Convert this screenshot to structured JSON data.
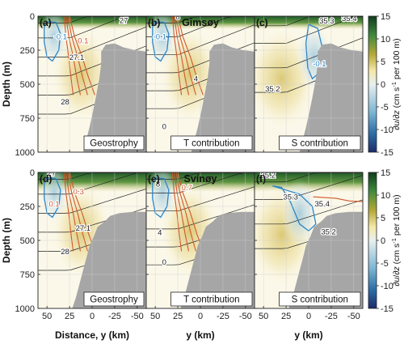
{
  "chart_data": {
    "type": "heatmap",
    "shared": {
      "ylabel": "Depth (m)",
      "xlabel_left": "Distance, y (km)",
      "xlabel": "y (km)",
      "xlim": [
        60,
        -60
      ],
      "xticks": [
        "50",
        "25",
        "0",
        "-25",
        "-50"
      ],
      "xtick_values": [
        50,
        25,
        0,
        -25,
        -50
      ],
      "ylim": [
        0,
        1000
      ],
      "yticks": [
        "0",
        "250",
        "500",
        "750",
        "1000"
      ],
      "ytick_values": [
        0,
        250,
        500,
        750,
        1000
      ],
      "colorbar": {
        "label": "∂u/∂z (cm s⁻¹ per 100 m)",
        "label_parts": [
          "∂",
          "u",
          "/∂",
          "z",
          " (cm s",
          "-1",
          " per 100 m)"
        ],
        "range": [
          -15,
          15
        ],
        "ticks": [
          "15",
          "10",
          "5",
          "0",
          "-5",
          "-10",
          "-15"
        ],
        "tick_values": [
          15,
          10,
          5,
          0,
          -5,
          -10,
          -15
        ],
        "colors": [
          "#1d2b6b",
          "#2c6fa8",
          "#7fb8d6",
          "#e8f0ee",
          "#f5e7a6",
          "#b5a836",
          "#3f8a3d",
          "#0f3d1e"
        ]
      }
    },
    "sections": [
      {
        "title": "Gimsøy",
        "panels": [
          {
            "tag": "(a)",
            "label": "Geostrophy",
            "contour_labels": [
              {
                "text": "27",
                "x": -35,
                "y": 50
              },
              {
                "text": "27.1",
                "x": 17,
                "y": 320
              },
              {
                "text": "28",
                "x": 30,
                "y": 650
              },
              {
                "text": "-0.1",
                "x": 35,
                "y": 170
              },
              {
                "text": "0.1",
                "x": 10,
                "y": 200
              }
            ]
          },
          {
            "tag": "(b)",
            "label": "T contribution",
            "contour_labels": [
              {
                "text": "8",
                "x": 25,
                "y": 25
              },
              {
                "text": "-0.1",
                "x": 45,
                "y": 170
              },
              {
                "text": "4",
                "x": 5,
                "y": 480
              },
              {
                "text": "0",
                "x": 40,
                "y": 830
              }
            ]
          },
          {
            "tag": "(c)",
            "label": "S contribution",
            "contour_labels": [
              {
                "text": "35.3",
                "x": -20,
                "y": 55
              },
              {
                "text": "35.4",
                "x": -45,
                "y": 35
              },
              {
                "text": "-0.1",
                "x": -12,
                "y": 370
              },
              {
                "text": "35.2",
                "x": 40,
                "y": 555
              }
            ]
          }
        ]
      },
      {
        "title": "Svínøy",
        "panels": [
          {
            "tag": "(d)",
            "label": "Geostrophy",
            "contour_labels": [
              {
                "text": "27",
                "x": 45,
                "y": 25
              },
              {
                "text": "0.3",
                "x": 15,
                "y": 160
              },
              {
                "text": "0.1",
                "x": 42,
                "y": 250
              },
              {
                "text": "27.1",
                "x": 10,
                "y": 430
              },
              {
                "text": "28",
                "x": 30,
                "y": 600
              }
            ]
          },
          {
            "tag": "(e)",
            "label": "T contribution",
            "contour_labels": [
              {
                "text": "8",
                "x": 47,
                "y": 105
              },
              {
                "text": "0.7",
                "x": 15,
                "y": 130
              },
              {
                "text": "4",
                "x": 45,
                "y": 460
              },
              {
                "text": "0",
                "x": 40,
                "y": 680
              }
            ]
          },
          {
            "tag": "(f)",
            "label": "S contribution",
            "contour_labels": [
              {
                "text": "35.2",
                "x": 45,
                "y": 40
              },
              {
                "text": "35.3",
                "x": 20,
                "y": 200
              },
              {
                "text": "35.4",
                "x": -15,
                "y": 250
              },
              {
                "text": "35.2",
                "x": -22,
                "y": 455
              }
            ]
          }
        ]
      }
    ]
  }
}
